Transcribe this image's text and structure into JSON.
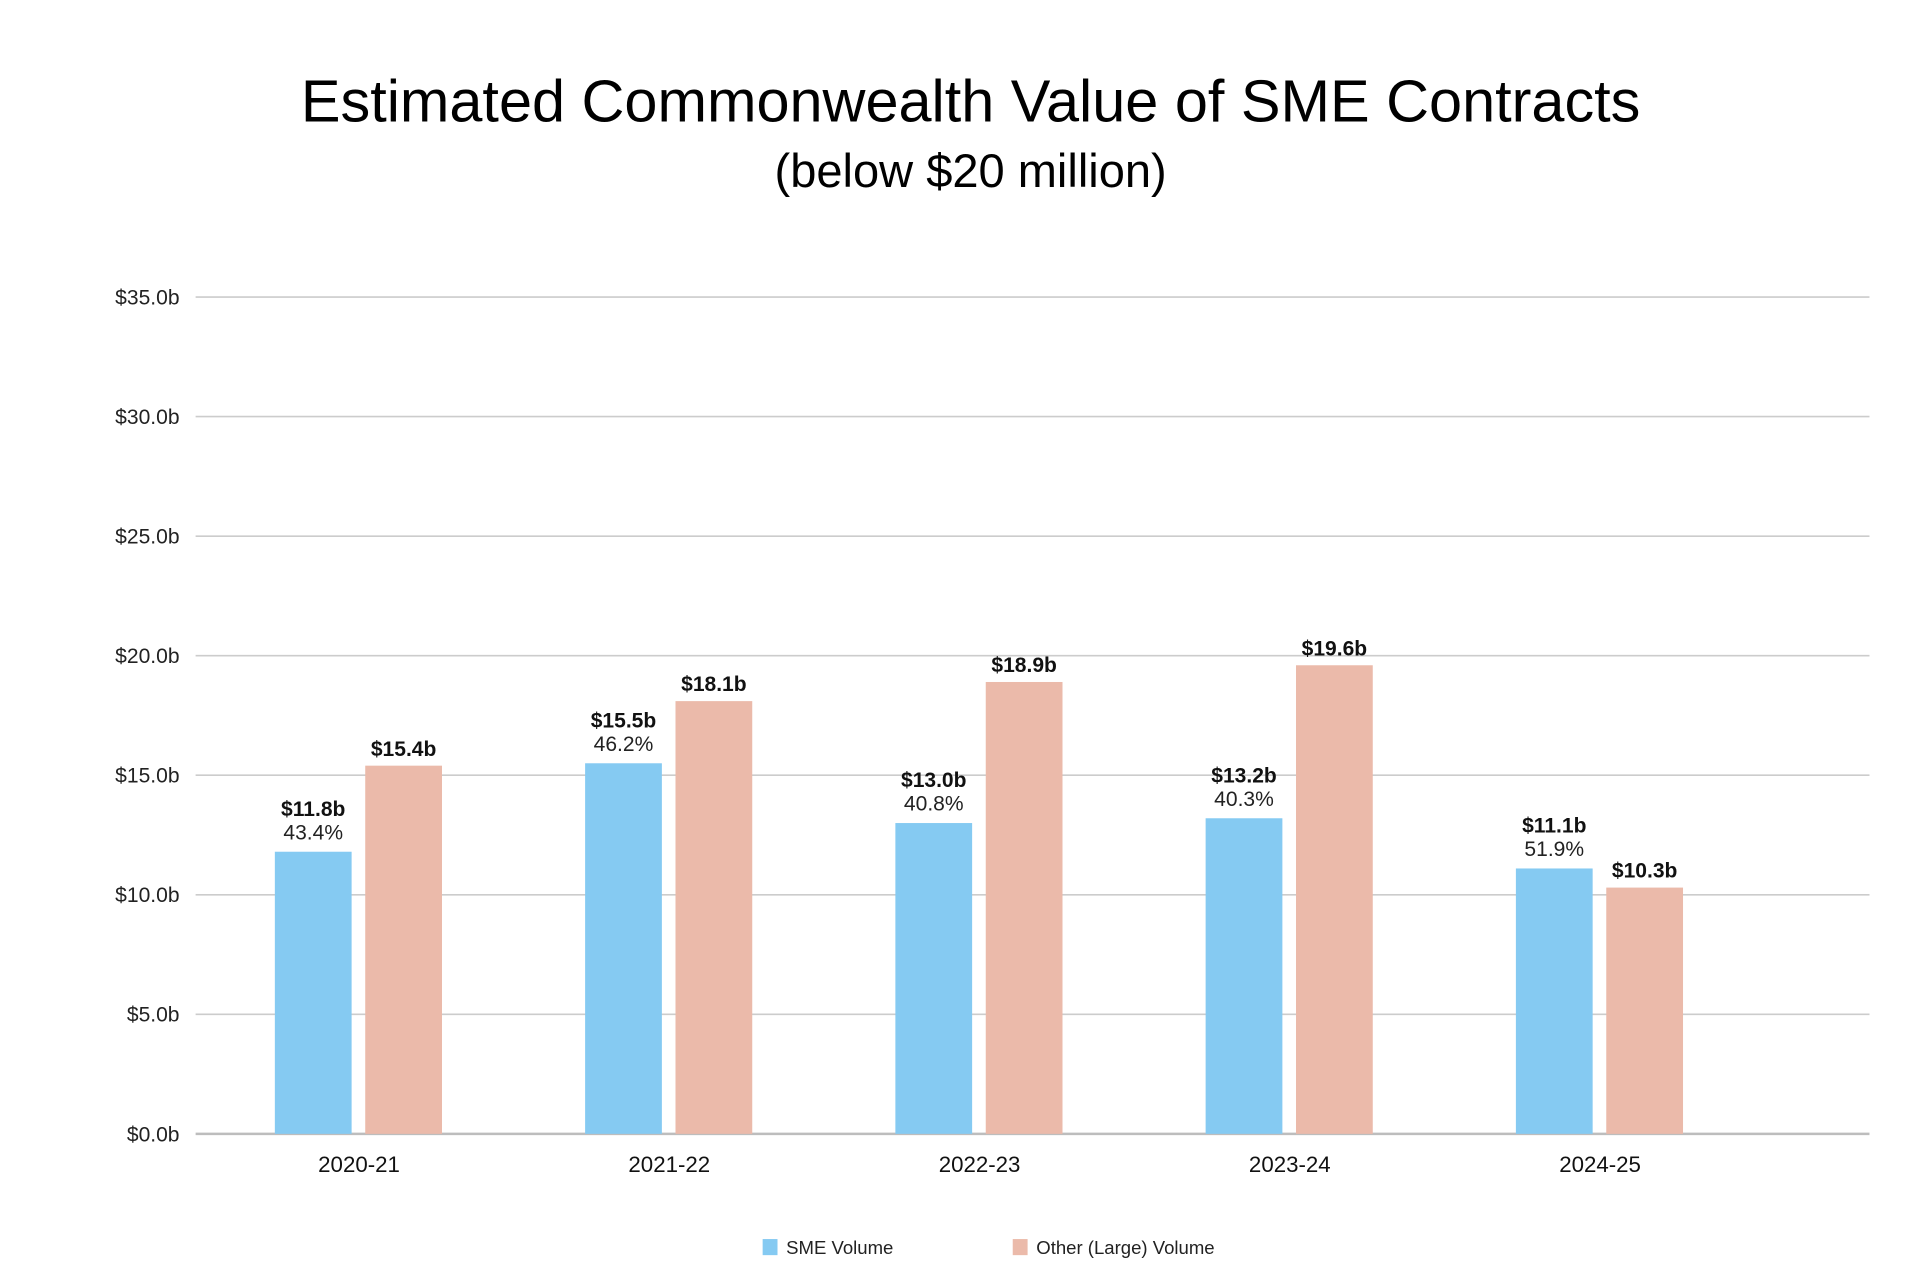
{
  "chart_data": {
    "type": "bar",
    "title": "Estimated Commonwealth Value of SME Contracts",
    "subtitle": "(below $20 million)",
    "categories": [
      "2020-21",
      "2021-22",
      "2022-23",
      "2023-24",
      "2024-25"
    ],
    "series": [
      {
        "name": "SME Volume",
        "color": "#85CAF2",
        "values": [
          11.8,
          15.5,
          13.0,
          13.2,
          11.1
        ],
        "labels": [
          "$11.8b",
          "$15.5b",
          "$13.0b",
          "$13.2b",
          "$11.1b"
        ],
        "percent_labels": [
          "43.4%",
          "46.2%",
          "40.8%",
          "40.3%",
          "51.9%"
        ]
      },
      {
        "name": "Other (Large) Volume",
        "color": "#EBBAAA",
        "values": [
          15.4,
          18.1,
          18.9,
          19.6,
          10.3
        ],
        "labels": [
          "$15.4b",
          "$18.1b",
          "$18.9b",
          "$19.6b",
          "$10.3b"
        ]
      }
    ],
    "ylim": [
      0,
      35
    ],
    "yticks": [
      0,
      5,
      10,
      15,
      20,
      25,
      30,
      35
    ],
    "ytick_labels": [
      "$0.0b",
      "$5.0b",
      "$10.0b",
      "$15.0b",
      "$20.0b",
      "$25.0b",
      "$30.0b",
      "$35.0b"
    ],
    "grid": true,
    "legend_position": "bottom"
  }
}
